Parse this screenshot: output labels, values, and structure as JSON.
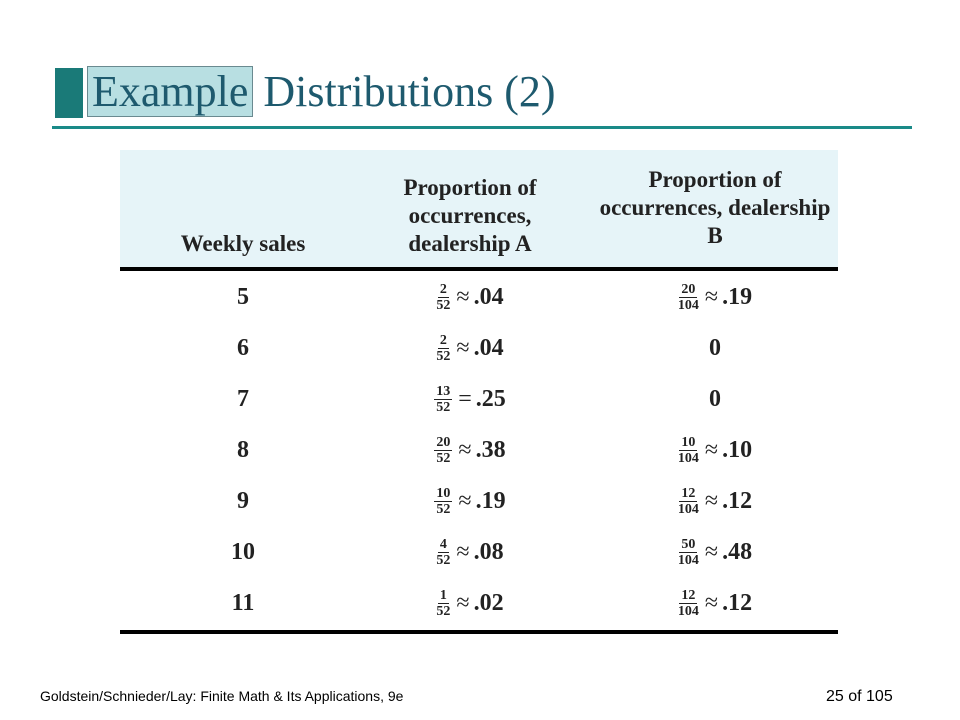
{
  "title": {
    "highlight": "Example",
    "rest": "Distributions (2)"
  },
  "table": {
    "headers": [
      "Weekly sales",
      "Proportion of occurrences, dealership A",
      "Proportion of occurrences, dealership B"
    ],
    "rows": [
      {
        "sales": "5",
        "a": {
          "num": "2",
          "den": "52",
          "rel": "≈",
          "val": ".04"
        },
        "b": {
          "num": "20",
          "den": "104",
          "rel": "≈",
          "val": ".19"
        }
      },
      {
        "sales": "6",
        "a": {
          "num": "2",
          "den": "52",
          "rel": "≈",
          "val": ".04"
        },
        "b": {
          "val": "0"
        }
      },
      {
        "sales": "7",
        "a": {
          "num": "13",
          "den": "52",
          "rel": "=",
          "val": ".25"
        },
        "b": {
          "val": "0"
        }
      },
      {
        "sales": "8",
        "a": {
          "num": "20",
          "den": "52",
          "rel": "≈",
          "val": ".38"
        },
        "b": {
          "num": "10",
          "den": "104",
          "rel": "≈",
          "val": ".10"
        }
      },
      {
        "sales": "9",
        "a": {
          "num": "10",
          "den": "52",
          "rel": "≈",
          "val": ".19"
        },
        "b": {
          "num": "12",
          "den": "104",
          "rel": "≈",
          "val": ".12"
        }
      },
      {
        "sales": "10",
        "a": {
          "num": "4",
          "den": "52",
          "rel": "≈",
          "val": ".08"
        },
        "b": {
          "num": "50",
          "den": "104",
          "rel": "≈",
          "val": ".48"
        }
      },
      {
        "sales": "11",
        "a": {
          "num": "1",
          "den": "52",
          "rel": "≈",
          "val": ".02"
        },
        "b": {
          "num": "12",
          "den": "104",
          "rel": "≈",
          "val": ".12"
        }
      }
    ]
  },
  "footer": {
    "source": "Goldstein/Schnieder/Lay: Finite Math & Its Applications, 9e",
    "page": "25 of 105"
  }
}
